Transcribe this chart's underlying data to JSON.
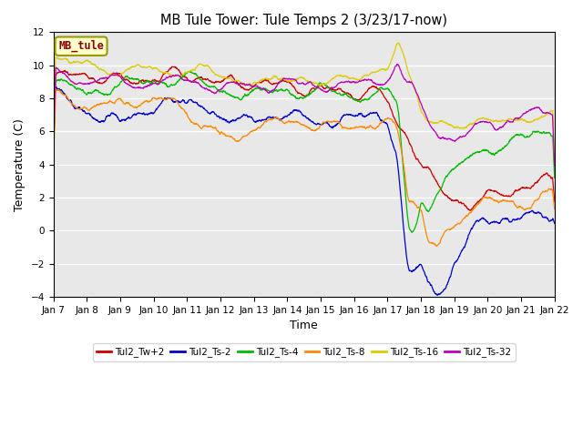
{
  "title": "MB Tule Tower: Tule Temps 2 (3/23/17-now)",
  "xlabel": "Time",
  "ylabel": "Temperature (C)",
  "ylim": [
    -4,
    12
  ],
  "yticks": [
    -4,
    -2,
    0,
    2,
    4,
    6,
    8,
    10,
    12
  ],
  "xtick_labels": [
    "Jan 7",
    "Jan 8",
    "Jan 9",
    "Jan 10",
    "Jan 11",
    "Jan 12",
    "Jan 13",
    "Jan 14",
    "Jan 15",
    "Jan 16",
    "Jan 17",
    "Jan 18",
    "Jan 19",
    "Jan 20",
    "Jan 21",
    "Jan 22"
  ],
  "bg_color": "#e8e8e8",
  "fig_color": "#ffffff",
  "series_colors": {
    "Tul2_Tw+2": "#cc0000",
    "Tul2_Ts-2": "#0000cc",
    "Tul2_Ts-4": "#00bb00",
    "Tul2_Ts-8": "#ff8800",
    "Tul2_Ts-16": "#ddcc00",
    "Tul2_Ts-32": "#bb00bb"
  },
  "legend_box_color": "#ffffcc",
  "legend_box_edge": "#999900",
  "legend_box_text": "#880000",
  "legend_box_label": "MB_tule",
  "n_points": 2000
}
